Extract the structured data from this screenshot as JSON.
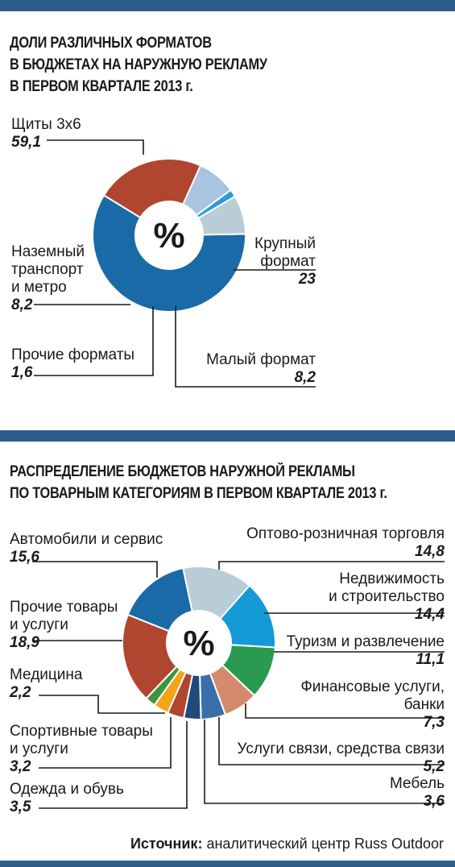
{
  "chart1": {
    "title_lines": [
      "ДОЛИ РАЗЛИЧНЫХ ФОРМАТОВ",
      "В БЮДЖЕТАХ НА НАРУЖНУЮ РЕКЛАМУ",
      "В ПЕРВОМ КВАРТАЛЕ 2013 г."
    ],
    "center_label": "%"
  },
  "chart2": {
    "title_lines": [
      "РАСПРЕДЕЛЕНИЕ БЮДЖЕТОВ НАРУЖНОЙ РЕКЛАМЫ",
      "ПО ТОВАРНЫМ КАТЕГОРИЯМ В ПЕРВОМ КВАРТАЛЕ 2013 г."
    ],
    "center_label": "%"
  },
  "source": {
    "label": "Источник:",
    "text": " аналитический центр Russ Outdoor"
  },
  "chart_data": [
    {
      "type": "pie",
      "title": "ДОЛИ РАЗЛИЧНЫХ ФОРМАТОВ В БЮДЖЕТАХ НА НАРУЖНУЮ РЕКЛАМУ В ПЕРВОМ КВАРТАЛЕ 2013 г.",
      "unit": "%",
      "slices": [
        {
          "label_lines": [
            "Щиты 3x6"
          ],
          "value": 59.1,
          "value_text": "59,1",
          "color": "#1a6aa8"
        },
        {
          "label_lines": [
            "Крупный",
            "формат"
          ],
          "value": 23,
          "value_text": "23",
          "color": "#b04530"
        },
        {
          "label_lines": [
            "Малый формат"
          ],
          "value": 8.2,
          "value_text": "8,2",
          "color": "#a8c4e0"
        },
        {
          "label_lines": [
            "Прочие форматы"
          ],
          "value": 1.6,
          "value_text": "1,6",
          "color": "#2c9ad6"
        },
        {
          "label_lines": [
            "Наземный",
            "транспорт",
            "и метро"
          ],
          "value": 8.2,
          "value_text": "8,2",
          "color": "#b9cdd6"
        }
      ]
    },
    {
      "type": "pie",
      "title": "РАСПРЕДЕЛЕНИЕ БЮДЖЕТОВ НАРУЖНОЙ РЕКЛАМЫ ПО ТОВАРНЫМ КАТЕГОРИЯМ В ПЕРВОМ КВАРТАЛЕ 2013 г.",
      "unit": "%",
      "slices": [
        {
          "label_lines": [
            "Оптово-розничная торговля"
          ],
          "value": 14.8,
          "value_text": "14,8",
          "color": "#b9cdd6"
        },
        {
          "label_lines": [
            "Недвижимость",
            "и строительство"
          ],
          "value": 14.4,
          "value_text": "14,4",
          "color": "#159ad8"
        },
        {
          "label_lines": [
            "Туризм и развлечение"
          ],
          "value": 11.1,
          "value_text": "11,1",
          "color": "#2a9a50"
        },
        {
          "label_lines": [
            "Финансовые услуги,",
            "банки"
          ],
          "value": 7.3,
          "value_text": "7,3",
          "color": "#d48a6c"
        },
        {
          "label_lines": [
            "Услуги связи, средства связи"
          ],
          "value": 5.2,
          "value_text": "5,2",
          "color": "#3a6ea8"
        },
        {
          "label_lines": [
            "Мебель"
          ],
          "value": 3.6,
          "value_text": "3,6",
          "color": "#1f4a7a"
        },
        {
          "label_lines": [
            "Одежда и обувь"
          ],
          "value": 3.5,
          "value_text": "3,5",
          "color": "#b04530"
        },
        {
          "label_lines": [
            "Спортивные товары",
            "и услуги"
          ],
          "value": 3.2,
          "value_text": "3,2",
          "color": "#f2a516"
        },
        {
          "label_lines": [
            "Медицина"
          ],
          "value": 2.2,
          "value_text": "2,2",
          "color": "#3e9540"
        },
        {
          "label_lines": [
            "Прочие товары",
            "и услуги"
          ],
          "value": 18.9,
          "value_text": "18,9",
          "color": "#b04530"
        },
        {
          "label_lines": [
            "Автомобили и сервис"
          ],
          "value": 15.6,
          "value_text": "15,6",
          "color": "#1a6aa8"
        }
      ]
    }
  ]
}
